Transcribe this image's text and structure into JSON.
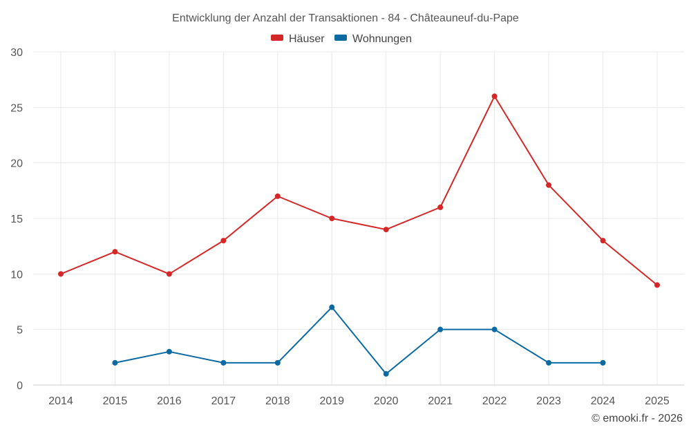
{
  "chart_data": {
    "type": "line",
    "title": "Entwicklung der Anzahl der Transaktionen - 84 - Châteauneuf-du-Pape",
    "categories": [
      "2014",
      "2015",
      "2016",
      "2017",
      "2018",
      "2019",
      "2020",
      "2021",
      "2022",
      "2023",
      "2024",
      "2025"
    ],
    "ylim": [
      0,
      30
    ],
    "yticks": [
      0,
      5,
      10,
      15,
      20,
      25,
      30
    ],
    "grid": true,
    "legend_position": "top-center",
    "series": [
      {
        "name": "Häuser",
        "color": "#d62728",
        "values": [
          10,
          12,
          10,
          13,
          17,
          15,
          14,
          16,
          26,
          18,
          13,
          9
        ]
      },
      {
        "name": "Wohnungen",
        "color": "#0b6aa2",
        "values": [
          null,
          2,
          3,
          2,
          2,
          7,
          1,
          5,
          5,
          2,
          2,
          null
        ]
      }
    ]
  },
  "credit": "© emooki.fr - 2026"
}
